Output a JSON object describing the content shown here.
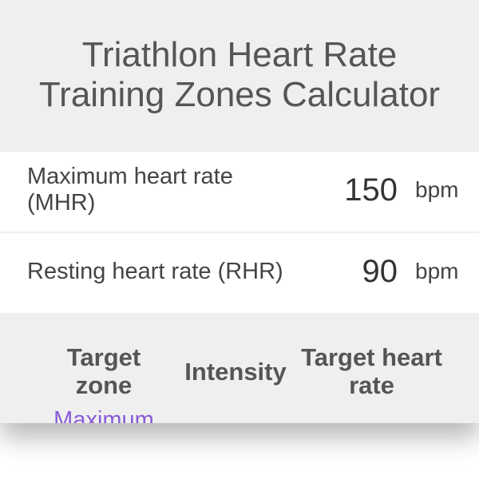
{
  "header": {
    "title_lines": [
      "Triathlon Heart Rate",
      "Training Zones Calculator"
    ]
  },
  "fields": [
    {
      "label": "Maximum heart rate (MHR)",
      "value": 150,
      "unit": "bpm"
    },
    {
      "label": "Resting heart rate (RHR)",
      "value": 90,
      "unit": "bpm"
    }
  ],
  "table": {
    "columns": [
      "Target zone",
      "Intensity",
      "Target heart rate"
    ],
    "rows": [
      [
        "Maximum"
      ]
    ]
  }
}
